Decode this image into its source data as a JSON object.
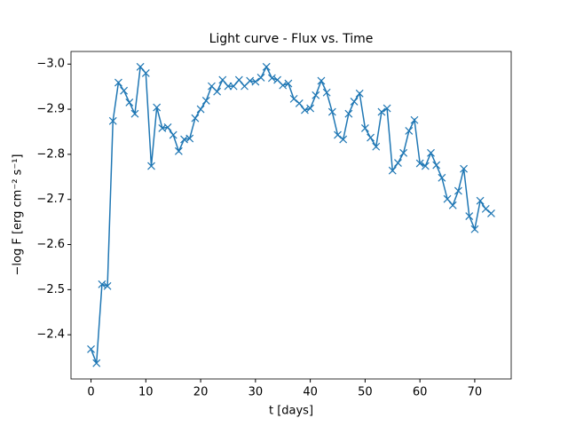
{
  "chart_data": {
    "type": "line",
    "title": "Light curve - Flux vs. Time",
    "x_label": "t [days]",
    "y_label": "−log F [erg cm⁻² s⁻¹]",
    "x": [
      0,
      1,
      2,
      3,
      4,
      5,
      6,
      7,
      8,
      9,
      10,
      11,
      12,
      13,
      14,
      15,
      16,
      17,
      18,
      19,
      20,
      21,
      22,
      23,
      24,
      25,
      26,
      27,
      28,
      29,
      30,
      31,
      32,
      33,
      34,
      35,
      36,
      37,
      38,
      39,
      40,
      41,
      42,
      43,
      44,
      45,
      46,
      47,
      48,
      49,
      50,
      51,
      52,
      53,
      54,
      55,
      56,
      57,
      58,
      59,
      60,
      61,
      62,
      63,
      64,
      65,
      66,
      67,
      68,
      69,
      70,
      71,
      72,
      73
    ],
    "series": [
      {
        "color": "#1f77b4",
        "marker": "x",
        "values": [
          -2.368,
          -2.337,
          -2.512,
          -2.508,
          -2.874,
          -2.959,
          -2.941,
          -2.915,
          -2.89,
          -2.994,
          -2.98,
          -2.774,
          -2.904,
          -2.858,
          -2.86,
          -2.843,
          -2.807,
          -2.833,
          -2.835,
          -2.88,
          -2.9,
          -2.919,
          -2.951,
          -2.939,
          -2.965,
          -2.951,
          -2.951,
          -2.965,
          -2.951,
          -2.963,
          -2.961,
          -2.97,
          -2.994,
          -2.969,
          -2.965,
          -2.953,
          -2.957,
          -2.923,
          -2.913,
          -2.898,
          -2.902,
          -2.931,
          -2.963,
          -2.937,
          -2.894,
          -2.843,
          -2.833,
          -2.89,
          -2.917,
          -2.935,
          -2.858,
          -2.837,
          -2.817,
          -2.894,
          -2.902,
          -2.764,
          -2.781,
          -2.803,
          -2.852,
          -2.876,
          -2.78,
          -2.774,
          -2.803,
          -2.776,
          -2.748,
          -2.701,
          -2.687,
          -2.719,
          -2.768,
          -2.663,
          -2.634,
          -2.697,
          -2.679,
          -2.669
        ]
      }
    ],
    "xlim": [
      -3.65,
      76.65
    ],
    "xticks": [
      0,
      10,
      20,
      30,
      40,
      50,
      60,
      70
    ],
    "ylim": [
      -2.302,
      -3.028
    ],
    "yticks": [
      {
        "value": -3.0,
        "label": "−3.0"
      },
      {
        "value": -2.9,
        "label": "−2.9"
      },
      {
        "value": -2.8,
        "label": "−2.8"
      },
      {
        "value": -2.7,
        "label": "−2.7"
      },
      {
        "value": -2.6,
        "label": "−2.6"
      },
      {
        "value": -2.5,
        "label": "−2.5"
      },
      {
        "value": -2.4,
        "label": "−2.4"
      }
    ],
    "grid": false
  }
}
